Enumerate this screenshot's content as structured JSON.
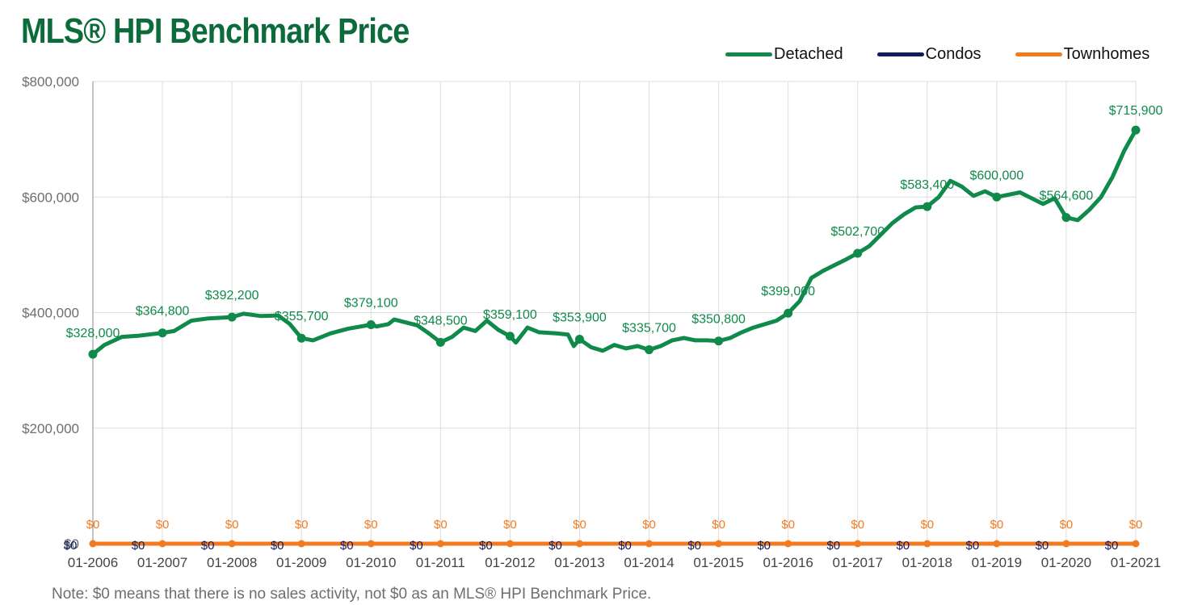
{
  "colors": {
    "title": "#0b6b3a",
    "detached": "#0f8a4a",
    "condos": "#0d1b5e",
    "townhomes": "#f47a1f",
    "label_green": "#0f8a4a",
    "grid": "#dddddd",
    "axis_text": "#6e6e6e"
  },
  "legend": {
    "detached": "Detached",
    "condos": "Condos",
    "townhomes": "Townhomes"
  },
  "note": "Note: $0 means that there is no sales activity, not $0 as an MLS® HPI Benchmark Price.",
  "chart_data": {
    "type": "line",
    "title": "MLS® HPI Benchmark Price",
    "xlabel": "",
    "ylabel": "",
    "ylim": [
      0,
      800000
    ],
    "yticks": [
      0,
      200000,
      400000,
      600000,
      800000
    ],
    "ytick_labels": [
      "$0",
      "$200,000",
      "$400,000",
      "$600,000",
      "$800,000"
    ],
    "x_range": [
      "01-2006",
      "01-2021"
    ],
    "xtick_labels": [
      "01-2006",
      "01-2007",
      "01-2008",
      "01-2009",
      "01-2010",
      "01-2011",
      "01-2012",
      "01-2013",
      "01-2014",
      "01-2015",
      "01-2016",
      "01-2017",
      "01-2018",
      "01-2019",
      "01-2020",
      "01-2021"
    ],
    "grid": true,
    "legend_position": "top-right",
    "series": [
      {
        "name": "Detached",
        "points": [
          [
            "01-2006",
            328000
          ],
          [
            "03-2006",
            344000
          ],
          [
            "06-2006",
            358000
          ],
          [
            "09-2006",
            360000
          ],
          [
            "01-2007",
            364800
          ],
          [
            "03-2007",
            368000
          ],
          [
            "06-2007",
            386000
          ],
          [
            "09-2007",
            390000
          ],
          [
            "01-2008",
            392200
          ],
          [
            "03-2008",
            398000
          ],
          [
            "06-2008",
            394000
          ],
          [
            "09-2008",
            395000
          ],
          [
            "11-2008",
            380000
          ],
          [
            "01-2009",
            355700
          ],
          [
            "03-2009",
            352000
          ],
          [
            "06-2009",
            364000
          ],
          [
            "09-2009",
            372000
          ],
          [
            "01-2010",
            379100
          ],
          [
            "02-2010",
            376000
          ],
          [
            "04-2010",
            380000
          ],
          [
            "05-2010",
            388000
          ],
          [
            "07-2010",
            383000
          ],
          [
            "09-2010",
            378000
          ],
          [
            "11-2010",
            364000
          ],
          [
            "01-2011",
            348500
          ],
          [
            "03-2011",
            358000
          ],
          [
            "05-2011",
            374000
          ],
          [
            "07-2011",
            368000
          ],
          [
            "09-2011",
            386000
          ],
          [
            "11-2011",
            370000
          ],
          [
            "01-2012",
            359100
          ],
          [
            "02-2012",
            348000
          ],
          [
            "04-2012",
            374000
          ],
          [
            "06-2012",
            366000
          ],
          [
            "09-2012",
            364000
          ],
          [
            "11-2012",
            362000
          ],
          [
            "12-2012",
            342000
          ],
          [
            "01-2013",
            353900
          ],
          [
            "03-2013",
            340000
          ],
          [
            "05-2013",
            334000
          ],
          [
            "07-2013",
            344000
          ],
          [
            "09-2013",
            338000
          ],
          [
            "11-2013",
            342000
          ],
          [
            "01-2014",
            335700
          ],
          [
            "03-2014",
            342000
          ],
          [
            "05-2014",
            352000
          ],
          [
            "07-2014",
            356000
          ],
          [
            "09-2014",
            352000
          ],
          [
            "11-2014",
            352000
          ],
          [
            "01-2015",
            350800
          ],
          [
            "03-2015",
            356000
          ],
          [
            "05-2015",
            366000
          ],
          [
            "07-2015",
            374000
          ],
          [
            "09-2015",
            380000
          ],
          [
            "11-2015",
            386000
          ],
          [
            "01-2016",
            399000
          ],
          [
            "03-2016",
            420000
          ],
          [
            "05-2016",
            460000
          ],
          [
            "07-2016",
            472000
          ],
          [
            "09-2016",
            482000
          ],
          [
            "11-2016",
            492000
          ],
          [
            "01-2017",
            502700
          ],
          [
            "03-2017",
            515000
          ],
          [
            "05-2017",
            535000
          ],
          [
            "07-2017",
            555000
          ],
          [
            "09-2017",
            570000
          ],
          [
            "11-2017",
            582000
          ],
          [
            "01-2018",
            583400
          ],
          [
            "03-2018",
            600000
          ],
          [
            "05-2018",
            628000
          ],
          [
            "07-2018",
            618000
          ],
          [
            "09-2018",
            602000
          ],
          [
            "11-2018",
            610000
          ],
          [
            "01-2019",
            600000
          ],
          [
            "03-2019",
            604000
          ],
          [
            "05-2019",
            608000
          ],
          [
            "07-2019",
            598000
          ],
          [
            "09-2019",
            588000
          ],
          [
            "11-2019",
            598000
          ],
          [
            "01-2020",
            564600
          ],
          [
            "03-2020",
            560000
          ],
          [
            "05-2020",
            578000
          ],
          [
            "07-2020",
            600000
          ],
          [
            "09-2020",
            635000
          ],
          [
            "11-2020",
            680000
          ],
          [
            "01-2021",
            715900
          ]
        ]
      },
      {
        "name": "Condos",
        "points": [
          [
            "01-2006",
            0
          ],
          [
            "01-2021",
            0
          ]
        ]
      },
      {
        "name": "Townhomes",
        "points": [
          [
            "01-2006",
            0
          ],
          [
            "01-2021",
            0
          ]
        ]
      }
    ],
    "detached_labels": [
      [
        "01-2006",
        328000,
        "$328,000"
      ],
      [
        "01-2007",
        364800,
        "$364,800"
      ],
      [
        "01-2008",
        392200,
        "$392,200"
      ],
      [
        "01-2009",
        355700,
        "$355,700"
      ],
      [
        "01-2010",
        379100,
        "$379,100"
      ],
      [
        "01-2011",
        348500,
        "$348,500"
      ],
      [
        "01-2012",
        359100,
        "$359,100"
      ],
      [
        "01-2013",
        353900,
        "$353,900"
      ],
      [
        "01-2014",
        335700,
        "$335,700"
      ],
      [
        "01-2015",
        350800,
        "$350,800"
      ],
      [
        "01-2016",
        399000,
        "$399,000"
      ],
      [
        "01-2017",
        502700,
        "$502,700"
      ],
      [
        "01-2018",
        583400,
        "$583,400"
      ],
      [
        "01-2019",
        600000,
        "$600,000"
      ],
      [
        "01-2020",
        564600,
        "$564,600"
      ],
      [
        "01-2021",
        715900,
        "$715,900"
      ]
    ],
    "zero_labels_condos": [
      "$0",
      "$0",
      "$0",
      "$0",
      "$0",
      "$0",
      "$0",
      "$0",
      "$0",
      "$0",
      "$0",
      "$0",
      "$0",
      "$0",
      "$0",
      "$0"
    ],
    "zero_labels_townhomes": [
      "$0",
      "$0",
      "$0",
      "$0",
      "$0",
      "$0",
      "$0",
      "$0",
      "$0",
      "$0",
      "$0",
      "$0",
      "$0",
      "$0",
      "$0",
      "$0"
    ]
  }
}
